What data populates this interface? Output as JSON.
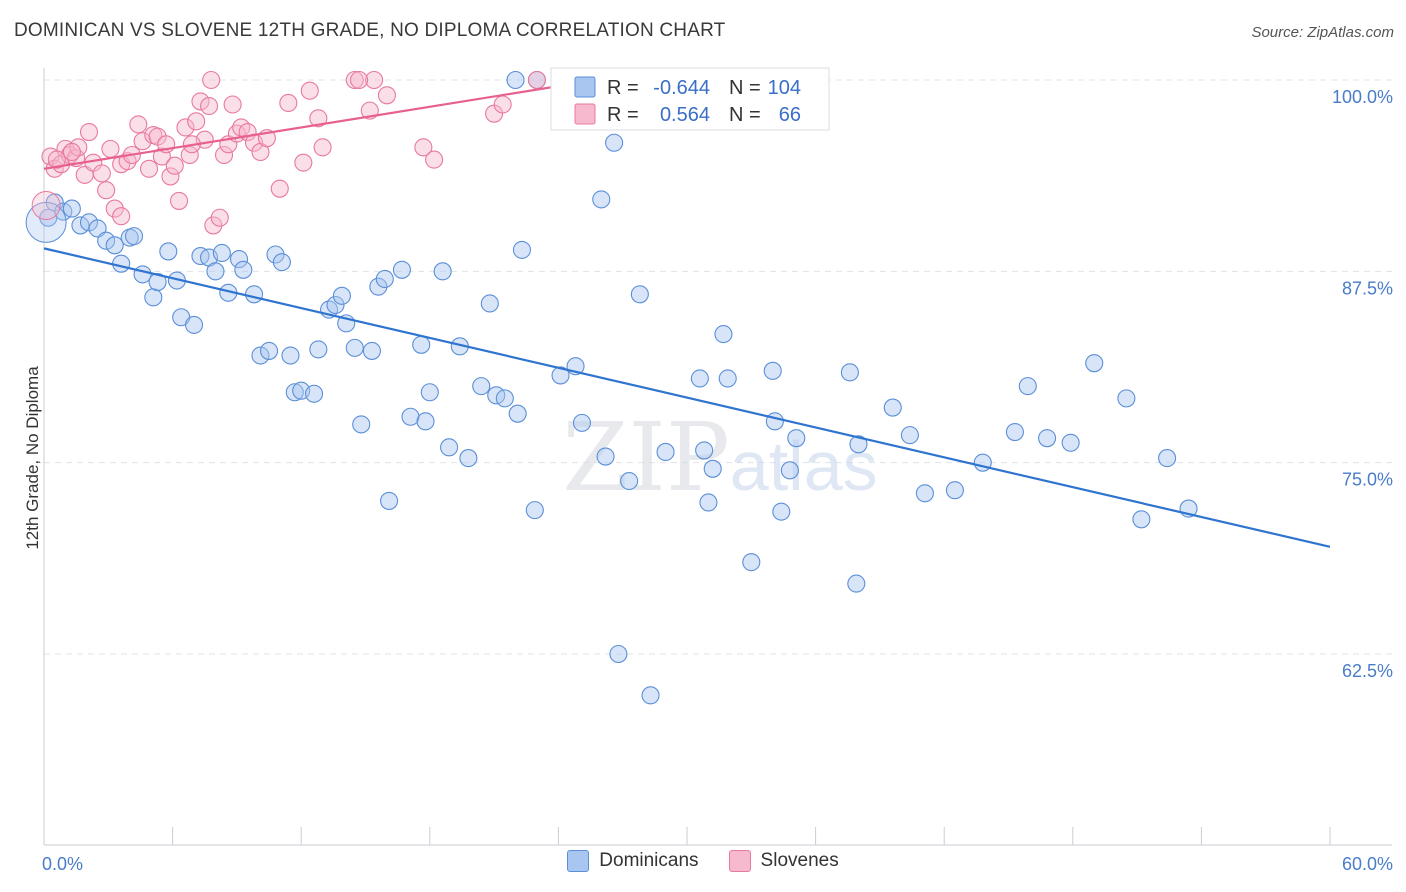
{
  "title": "DOMINICAN VS SLOVENE 12TH GRADE, NO DIPLOMA CORRELATION CHART",
  "source": "Source: ZipAtlas.com",
  "watermark": "ZIPatlas",
  "colors": {
    "blue_fill": "#a9c6f0",
    "blue_stroke": "#5b8fd8",
    "blue_line": "#2f74d0",
    "pink_fill": "#f6b9cd",
    "pink_stroke": "#e8799f",
    "pink_line": "#e8608e",
    "tick_text": "#4a7cc9",
    "grid": "#dfe3ea"
  },
  "legend": {
    "rows": [
      {
        "r_label": "R = ",
        "r_value": "-0.644",
        "n_label": "N = ",
        "n_value": "104",
        "color": "blue"
      },
      {
        "r_label": "R = ",
        "r_value": "0.564",
        "n_label": "N = ",
        "n_value": "66",
        "color": "pink"
      }
    ]
  },
  "bottom_legend": [
    {
      "label": "Dominicans",
      "color": "blue"
    },
    {
      "label": "Slovenes",
      "color": "pink"
    }
  ],
  "chart_data": {
    "type": "scatter",
    "title": "DOMINICAN VS SLOVENE 12TH GRADE, NO DIPLOMA CORRELATION CHART",
    "ylabel": "12th Grade, No Diploma",
    "xlabel": "",
    "xlim": [
      0,
      60
    ],
    "ylim": [
      50,
      102
    ],
    "x_tick_labels": [
      {
        "value": 0,
        "label": "0.0%"
      },
      {
        "value": 60,
        "label": "60.0%"
      }
    ],
    "y_tick_labels": [
      {
        "value": 100,
        "label": "100.0%"
      },
      {
        "value": 87.5,
        "label": "87.5%"
      },
      {
        "value": 75,
        "label": "75.0%"
      },
      {
        "value": 62.5,
        "label": "62.5%"
      }
    ],
    "grid": true,
    "series": [
      {
        "name": "Dominicans",
        "color": "blue",
        "r": -0.644,
        "n": 104,
        "trend": {
          "x0": 0,
          "y0": 89.0,
          "x1": 60,
          "y1": 69.5
        },
        "points": [
          [
            0.2,
            91.0
          ],
          [
            0.5,
            92.0
          ],
          [
            0.9,
            91.4
          ],
          [
            1.3,
            91.6
          ],
          [
            1.7,
            90.5
          ],
          [
            2.1,
            90.7
          ],
          [
            2.5,
            90.3
          ],
          [
            2.9,
            89.5
          ],
          [
            3.3,
            89.2
          ],
          [
            3.6,
            88.0
          ],
          [
            4.0,
            89.7
          ],
          [
            4.2,
            89.8
          ],
          [
            4.6,
            87.3
          ],
          [
            5.1,
            85.8
          ],
          [
            5.3,
            86.8
          ],
          [
            5.8,
            88.8
          ],
          [
            6.2,
            86.9
          ],
          [
            6.4,
            84.5
          ],
          [
            7.0,
            84.0
          ],
          [
            7.3,
            88.5
          ],
          [
            7.7,
            88.4
          ],
          [
            8.0,
            87.5
          ],
          [
            8.3,
            88.7
          ],
          [
            8.6,
            86.1
          ],
          [
            9.1,
            88.3
          ],
          [
            9.3,
            87.6
          ],
          [
            9.8,
            86.0
          ],
          [
            10.1,
            82.0
          ],
          [
            10.5,
            82.3
          ],
          [
            10.8,
            88.6
          ],
          [
            11.1,
            88.1
          ],
          [
            11.5,
            82.0
          ],
          [
            11.7,
            79.6
          ],
          [
            12.0,
            79.7
          ],
          [
            12.6,
            79.5
          ],
          [
            12.8,
            82.4
          ],
          [
            13.3,
            85.0
          ],
          [
            13.6,
            85.3
          ],
          [
            13.9,
            85.9
          ],
          [
            14.1,
            84.1
          ],
          [
            14.5,
            82.5
          ],
          [
            14.8,
            77.5
          ],
          [
            15.3,
            82.3
          ],
          [
            15.6,
            86.5
          ],
          [
            15.9,
            87.0
          ],
          [
            16.1,
            72.5
          ],
          [
            16.7,
            87.6
          ],
          [
            17.1,
            78.0
          ],
          [
            17.6,
            82.7
          ],
          [
            17.8,
            77.7
          ],
          [
            18.0,
            79.6
          ],
          [
            18.6,
            87.5
          ],
          [
            18.9,
            76.0
          ],
          [
            19.4,
            82.6
          ],
          [
            19.8,
            75.3
          ],
          [
            20.4,
            80.0
          ],
          [
            20.8,
            85.4
          ],
          [
            21.1,
            79.4
          ],
          [
            21.5,
            79.2
          ],
          [
            22.1,
            78.2
          ],
          [
            22.3,
            88.9
          ],
          [
            22.9,
            71.9
          ],
          [
            24.1,
            80.7
          ],
          [
            24.8,
            81.3
          ],
          [
            25.1,
            77.6
          ],
          [
            26.2,
            75.4
          ],
          [
            26.6,
            95.9
          ],
          [
            26.8,
            62.5
          ],
          [
            27.3,
            73.8
          ],
          [
            27.8,
            86.0
          ],
          [
            28.3,
            59.8
          ],
          [
            29.0,
            75.7
          ],
          [
            30.6,
            80.5
          ],
          [
            30.8,
            75.8
          ],
          [
            31.2,
            74.6
          ],
          [
            31.7,
            83.4
          ],
          [
            31.9,
            80.5
          ],
          [
            33.0,
            68.5
          ],
          [
            34.0,
            81.0
          ],
          [
            34.1,
            77.7
          ],
          [
            34.4,
            71.8
          ],
          [
            34.8,
            74.5
          ],
          [
            35.1,
            76.6
          ],
          [
            37.6,
            80.9
          ],
          [
            37.9,
            67.1
          ],
          [
            38.0,
            76.2
          ],
          [
            39.6,
            78.6
          ],
          [
            40.4,
            76.8
          ],
          [
            41.1,
            73.0
          ],
          [
            42.5,
            73.2
          ],
          [
            43.8,
            75.0
          ],
          [
            45.3,
            77.0
          ],
          [
            45.9,
            80.0
          ],
          [
            46.8,
            76.6
          ],
          [
            47.9,
            76.3
          ],
          [
            49.0,
            81.5
          ],
          [
            50.5,
            79.2
          ],
          [
            51.2,
            71.3
          ],
          [
            52.4,
            75.3
          ],
          [
            53.4,
            72.0
          ],
          [
            22.0,
            100.0
          ],
          [
            23.0,
            100.0
          ],
          [
            26.0,
            92.2
          ],
          [
            31.0,
            72.4
          ]
        ]
      },
      {
        "name": "Slovenes",
        "color": "pink",
        "r": 0.564,
        "n": 66,
        "trend": {
          "x0": 0,
          "y0": 94.2,
          "x1": 28,
          "y1": 100.5
        },
        "points": [
          [
            0.3,
            95.0
          ],
          [
            0.5,
            94.2
          ],
          [
            0.8,
            94.5
          ],
          [
            1.0,
            95.5
          ],
          [
            1.2,
            95.1
          ],
          [
            1.5,
            94.9
          ],
          [
            1.6,
            95.6
          ],
          [
            1.9,
            93.8
          ],
          [
            2.1,
            96.6
          ],
          [
            2.3,
            94.6
          ],
          [
            2.7,
            93.9
          ],
          [
            2.9,
            92.8
          ],
          [
            3.1,
            95.5
          ],
          [
            3.3,
            91.6
          ],
          [
            3.6,
            94.5
          ],
          [
            3.9,
            94.7
          ],
          [
            4.1,
            95.1
          ],
          [
            4.4,
            97.1
          ],
          [
            4.6,
            96.0
          ],
          [
            4.9,
            94.2
          ],
          [
            5.1,
            96.4
          ],
          [
            5.3,
            96.3
          ],
          [
            5.5,
            95.0
          ],
          [
            5.7,
            95.8
          ],
          [
            5.9,
            93.7
          ],
          [
            6.1,
            94.4
          ],
          [
            6.3,
            92.1
          ],
          [
            6.6,
            96.9
          ],
          [
            6.8,
            95.1
          ],
          [
            7.1,
            97.3
          ],
          [
            7.3,
            98.6
          ],
          [
            7.5,
            96.1
          ],
          [
            7.7,
            98.3
          ],
          [
            7.9,
            90.5
          ],
          [
            8.2,
            91.0
          ],
          [
            8.4,
            95.1
          ],
          [
            8.6,
            95.8
          ],
          [
            8.8,
            98.4
          ],
          [
            9.0,
            96.5
          ],
          [
            9.2,
            96.9
          ],
          [
            9.5,
            96.6
          ],
          [
            9.8,
            95.9
          ],
          [
            10.1,
            95.3
          ],
          [
            10.4,
            96.2
          ],
          [
            11.0,
            92.9
          ],
          [
            11.4,
            98.5
          ],
          [
            12.1,
            94.6
          ],
          [
            12.4,
            99.3
          ],
          [
            12.8,
            97.5
          ],
          [
            13.0,
            95.6
          ],
          [
            14.5,
            100.0
          ],
          [
            15.2,
            98.0
          ],
          [
            15.4,
            100.0
          ],
          [
            16.0,
            99.0
          ],
          [
            17.7,
            95.6
          ],
          [
            18.2,
            94.8
          ],
          [
            21.0,
            97.8
          ],
          [
            21.4,
            98.4
          ],
          [
            23.0,
            100.0
          ],
          [
            32.0,
            99.8
          ],
          [
            7.8,
            100.0
          ],
          [
            14.7,
            100.0
          ],
          [
            6.9,
            95.8
          ],
          [
            3.6,
            91.1
          ],
          [
            1.3,
            95.3
          ],
          [
            0.6,
            94.8
          ]
        ]
      }
    ]
  }
}
